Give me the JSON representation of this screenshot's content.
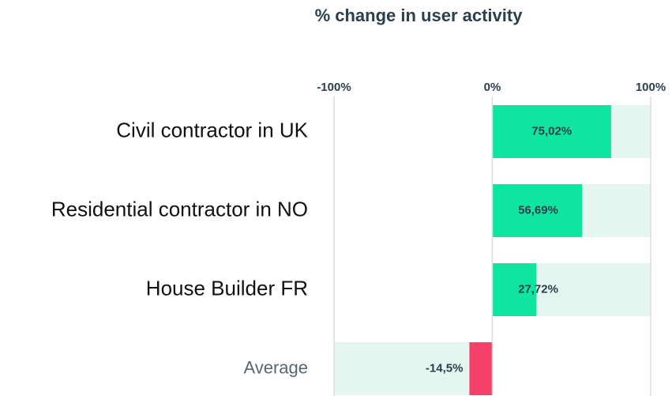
{
  "chart_data": {
    "type": "bar",
    "orientation": "horizontal",
    "title": "% change in user activity",
    "categories": [
      "Civil contractor in UK",
      "Residential contractor in NO",
      "House Builder FR",
      "Average"
    ],
    "values": [
      75.02,
      56.69,
      27.72,
      -14.5
    ],
    "value_labels": [
      "75,02%",
      "56,69%",
      "27,72%",
      "-14,5%"
    ],
    "positive_color": "#0ee6a0",
    "negative_color": "#f5416a",
    "track_color": "#e5f6f0",
    "xlim": [
      -100,
      100
    ],
    "xticks": [
      {
        "value": -100,
        "label": "-100%"
      },
      {
        "value": 0,
        "label": "0%"
      },
      {
        "value": 100,
        "label": "100%"
      }
    ],
    "grid": true
  }
}
